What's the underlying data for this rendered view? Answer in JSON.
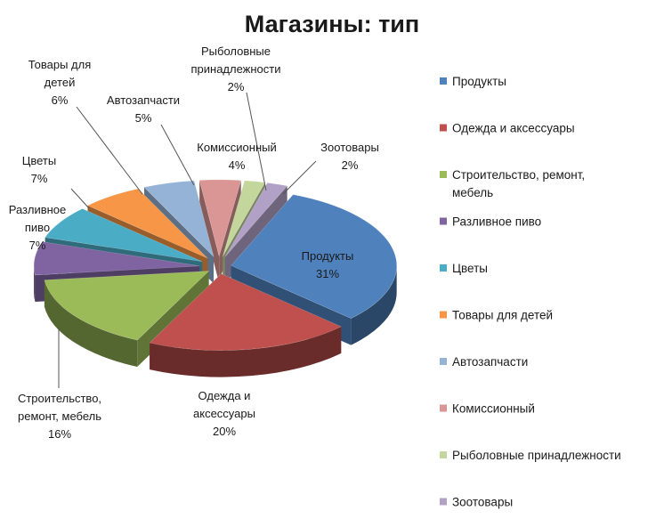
{
  "chart_data": {
    "type": "pie",
    "title": "Магазины: тип",
    "categories": [
      "Продукты",
      "Одежда и аксессуары",
      "Строительство, ремонт, мебель",
      "Разливное пиво",
      "Цветы",
      "Товары для детей",
      "Автозапчасти",
      "Комиссионный",
      "Рыболовные принадлежности",
      "Зоотовары"
    ],
    "values": [
      31,
      20,
      16,
      7,
      7,
      6,
      5,
      4,
      2,
      2
    ],
    "unit": "%",
    "data_labels": [
      [
        "Продукты",
        "31%"
      ],
      [
        "Одежда и",
        "аксессуары",
        "20%"
      ],
      [
        "Строительство,",
        "ремонт, мебель",
        "16%"
      ],
      [
        "Разливное",
        "пиво",
        "7%"
      ],
      [
        "Цветы",
        "7%"
      ],
      [
        "Товары для",
        "детей",
        "6%"
      ],
      [
        "Автозапчасти",
        "5%"
      ],
      [
        "Комиссионный",
        "4%"
      ],
      [
        "Рыболовные",
        "принадлежности",
        "2%"
      ],
      [
        "Зоотовары",
        "2%"
      ]
    ],
    "legend": {
      "position": "right",
      "entries": [
        [
          "Продукты"
        ],
        [
          "Одежда  и аксессуары"
        ],
        [
          "Строительство, ремонт,",
          "мебель"
        ],
        [
          "Разливное пиво"
        ],
        [
          "Цветы"
        ],
        [
          "Товары для детей"
        ],
        [
          "Автозапчасти"
        ],
        [
          "Комиссионный"
        ],
        [
          "Рыболовные принадлежности"
        ],
        [
          "Зоотовары"
        ]
      ]
    },
    "colors": [
      "#4F81BD",
      "#C0504D",
      "#9BBB59",
      "#8064A2",
      "#4BACC6",
      "#F79646",
      "#95B3D7",
      "#D99694",
      "#C3D69B",
      "#B2A1C7"
    ],
    "style": "3d-exploded-pie"
  }
}
